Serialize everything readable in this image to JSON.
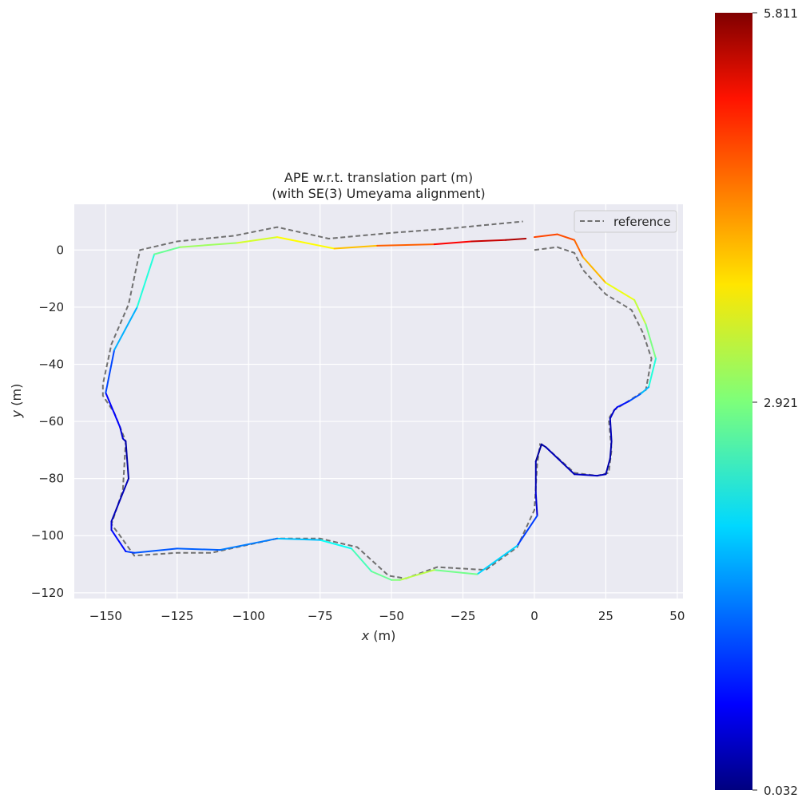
{
  "chart_data": {
    "type": "line",
    "title_line1": "APE w.r.t. translation part (m)",
    "title_line2": "(with SE(3) Umeyama alignment)",
    "xlabel_var": "x",
    "xlabel_unit": " (m)",
    "ylabel_var": "y",
    "ylabel_unit": " (m)",
    "xlim": [
      -161,
      52
    ],
    "ylim": [
      -122,
      16
    ],
    "xticks": [
      -150,
      -125,
      -100,
      -75,
      -50,
      -25,
      0,
      25,
      50
    ],
    "yticks": [
      0,
      -20,
      -40,
      -60,
      -80,
      -100,
      -120
    ],
    "xtick_labels": [
      "−150",
      "−125",
      "−100",
      "−75",
      "−50",
      "−25",
      "0",
      "25",
      "50"
    ],
    "ytick_labels": [
      "0",
      "−20",
      "−40",
      "−60",
      "−80",
      "−100",
      "−120"
    ],
    "grid": true,
    "background_color": "#eaeaf2",
    "legend": {
      "position": "top-right",
      "label": "reference"
    },
    "colorbar": {
      "colormap": "jet",
      "min": 0.032,
      "mid": 2.921,
      "max": 5.811,
      "tick_labels": [
        "5.811",
        "2.921",
        "0.032"
      ]
    },
    "series": [
      {
        "name": "reference",
        "style": "dashed",
        "color": "#707070",
        "points": [
          [
            0,
            0
          ],
          [
            8,
            1
          ],
          [
            14,
            -1
          ],
          [
            17,
            -7
          ],
          [
            25,
            -15.5
          ],
          [
            34,
            -21
          ],
          [
            38,
            -29
          ],
          [
            41,
            -38
          ],
          [
            39,
            -49
          ],
          [
            28,
            -56
          ],
          [
            26,
            -59
          ],
          [
            27,
            -70
          ],
          [
            26,
            -78
          ],
          [
            22,
            -79
          ],
          [
            14,
            -78
          ],
          [
            4,
            -69
          ],
          [
            2,
            -68
          ],
          [
            1,
            -75
          ],
          [
            0,
            -91
          ],
          [
            -6,
            -104
          ],
          [
            -17,
            -112
          ],
          [
            -34,
            -111
          ],
          [
            -45,
            -115
          ],
          [
            -51,
            -114
          ],
          [
            -62,
            -104
          ],
          [
            -75,
            -101
          ],
          [
            -90,
            -101
          ],
          [
            -113,
            -106
          ],
          [
            -125,
            -106
          ],
          [
            -140,
            -107
          ],
          [
            -145,
            -100
          ],
          [
            -148,
            -96
          ],
          [
            -144,
            -84
          ],
          [
            -143,
            -67
          ],
          [
            -147,
            -57
          ],
          [
            -151,
            -51
          ],
          [
            -151,
            -47
          ],
          [
            -148,
            -33
          ],
          [
            -142,
            -19
          ],
          [
            -138,
            0
          ],
          [
            -125,
            3
          ],
          [
            -105,
            5
          ],
          [
            -90,
            8
          ],
          [
            -72,
            4
          ],
          [
            -50,
            6
          ],
          [
            -30,
            7.5
          ],
          [
            -4,
            10
          ]
        ]
      },
      {
        "name": "",
        "style": "error-colored",
        "points": [
          [
            0,
            4.5,
            4.7
          ],
          [
            8,
            5.5,
            4.7
          ],
          [
            14,
            3.5,
            4.6
          ],
          [
            17,
            -2.5,
            4.4
          ],
          [
            25,
            -11.5,
            3.7
          ],
          [
            35,
            -17.5,
            3.4
          ],
          [
            39,
            -26,
            3.2
          ],
          [
            42.5,
            -38,
            2.6
          ],
          [
            40,
            -48,
            2.2
          ],
          [
            37,
            -50.5,
            1.4
          ],
          [
            33,
            -53,
            1.0
          ],
          [
            29,
            -55,
            0.7
          ],
          [
            28,
            -56,
            0.5
          ],
          [
            26.5,
            -59,
            0.4
          ],
          [
            27,
            -67,
            0.3
          ],
          [
            26.5,
            -73,
            0.25
          ],
          [
            25,
            -78.5,
            0.3
          ],
          [
            22,
            -79,
            0.4
          ],
          [
            14,
            -78.5,
            0.4
          ],
          [
            4,
            -69,
            0.3
          ],
          [
            2.5,
            -68,
            0.2
          ],
          [
            0.5,
            -74,
            0.2
          ],
          [
            0.5,
            -85,
            0.4
          ],
          [
            1,
            -93,
            0.6
          ],
          [
            -6,
            -103.5,
            1.6
          ],
          [
            -20,
            -113.5,
            2.3
          ],
          [
            -35,
            -112,
            3.4
          ],
          [
            -47,
            -115.5,
            3.1
          ],
          [
            -50,
            -115.5,
            2.8
          ],
          [
            -57,
            -112.5,
            2.8
          ],
          [
            -64,
            -104.5,
            2.4
          ],
          [
            -75,
            -101.5,
            2.1
          ],
          [
            -90,
            -101,
            1.6
          ],
          [
            -110,
            -105,
            1.3
          ],
          [
            -125,
            -104.5,
            1.3
          ],
          [
            -140,
            -106,
            1.2
          ],
          [
            -143,
            -105.5,
            1.0
          ],
          [
            -148,
            -98,
            0.6
          ],
          [
            -148,
            -95,
            0.5
          ],
          [
            -142,
            -80,
            0.2
          ],
          [
            -143,
            -67,
            0.3
          ],
          [
            -144,
            -66,
            0.4
          ],
          [
            -145,
            -62,
            0.6
          ],
          [
            -150,
            -50,
            0.9
          ],
          [
            -147,
            -35,
            1.4
          ],
          [
            -139,
            -20,
            2.1
          ],
          [
            -133,
            -1.5,
            2.7
          ],
          [
            -124,
            1,
            2.9
          ],
          [
            -104,
            2.5,
            3.3
          ],
          [
            -90,
            4.5,
            3.5
          ],
          [
            -70,
            0.5,
            3.8
          ],
          [
            -55,
            1.5,
            4.2
          ],
          [
            -35,
            2,
            4.9
          ],
          [
            -22,
            3,
            5.3
          ],
          [
            -10,
            3.5,
            5.5
          ],
          [
            -3,
            4,
            5.6
          ]
        ]
      }
    ]
  }
}
